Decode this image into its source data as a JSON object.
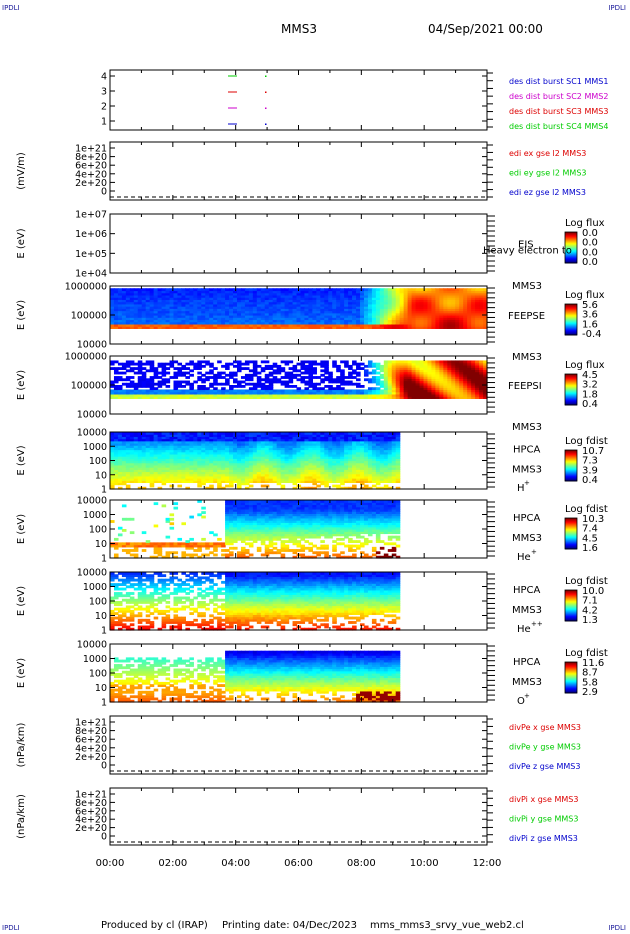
{
  "header": {
    "corner_label": "IPDLI",
    "spacecraft": "MMS3",
    "datetime": "04/Sep/2021 00:00"
  },
  "footer": {
    "produced_by": "Produced by cl (IRAP)",
    "printing_date": "Printing date: 04/Dec/2023",
    "filename": "mms_mms3_srvy_vue_web2.cl"
  },
  "colors": {
    "red": "#dd0000",
    "green": "#00cc00",
    "blue": "#0000cc",
    "magenta": "#cc00cc"
  },
  "chart_data": [
    {
      "type": "line",
      "name": "burst-intervals",
      "ylabel": "",
      "yticks": [
        "4",
        "3",
        "2",
        "1"
      ],
      "legend": [
        {
          "label": "des dist burst SC1 MMS1",
          "color": "#0000cc"
        },
        {
          "label": "des dist burst SC2 MMS2",
          "color": "#cc00cc"
        },
        {
          "label": "des dist burst SC3 MMS3",
          "color": "#dd0000"
        },
        {
          "label": "des dist burst SC4 MMS4",
          "color": "#00cc00"
        }
      ]
    },
    {
      "type": "line",
      "name": "edi-e-field",
      "ylabel": "(mV/m)",
      "yticks": [
        "1e+21",
        "8e+20",
        "6e+20",
        "4e+20",
        "2e+20",
        "0"
      ],
      "legend": [
        {
          "label": "edi ex gse l2 MMS3",
          "color": "#dd0000"
        },
        {
          "label": "edi ey gse l2 MMS3",
          "color": "#00cc00"
        },
        {
          "label": "edi ez gse l2 MMS3",
          "color": "#0000cc"
        }
      ]
    },
    {
      "type": "heatmap",
      "name": "eis",
      "ylabel": "E (eV)",
      "yticks": [
        "1e+07",
        "1e+06",
        "1e+05",
        "1e+04"
      ],
      "instrument": "EIS",
      "craft": "MMS3",
      "overlay_text": "Heavy electron to",
      "colorbar": {
        "title": "Log flux",
        "ticks": [
          "0.0",
          "0.0",
          "0.0",
          "0.0"
        ]
      }
    },
    {
      "type": "heatmap",
      "name": "feepse",
      "ylabel": "E (eV)",
      "yticks": [
        "1000000",
        "100000",
        "10000"
      ],
      "instrument": "FEEPSE",
      "craft": "MMS3",
      "colorbar": {
        "title": "Log flux",
        "ticks": [
          "5.6",
          "3.6",
          "1.6",
          "-0.4"
        ]
      }
    },
    {
      "type": "heatmap",
      "name": "feepsi",
      "ylabel": "E (eV)",
      "yticks": [
        "1000000",
        "100000",
        "10000"
      ],
      "instrument": "FEEPSI",
      "craft": "MMS3",
      "colorbar": {
        "title": "Log flux",
        "ticks": [
          "4.5",
          "3.2",
          "1.8",
          "0.4"
        ]
      }
    },
    {
      "type": "heatmap",
      "name": "hpca-h",
      "ylabel": "E (eV)",
      "yticks": [
        "10000",
        "1000",
        "100",
        "10",
        "1"
      ],
      "instrument": "HPCA",
      "craft": "MMS3",
      "species": "H",
      "charge": "+",
      "colorbar": {
        "title": "Log fdist",
        "ticks": [
          "10.7",
          "7.3",
          "3.9",
          "0.4"
        ]
      }
    },
    {
      "type": "heatmap",
      "name": "hpca-he",
      "ylabel": "E (eV)",
      "yticks": [
        "10000",
        "1000",
        "100",
        "10",
        "1"
      ],
      "instrument": "HPCA",
      "craft": "MMS3",
      "species": "He",
      "charge": "+",
      "colorbar": {
        "title": "Log fdist",
        "ticks": [
          "10.3",
          "7.4",
          "4.5",
          "1.6"
        ]
      }
    },
    {
      "type": "heatmap",
      "name": "hpca-hepp",
      "ylabel": "E (eV)",
      "yticks": [
        "10000",
        "1000",
        "100",
        "10",
        "1"
      ],
      "instrument": "HPCA",
      "craft": "MMS3",
      "species": "He",
      "charge": "++",
      "colorbar": {
        "title": "Log fdist",
        "ticks": [
          "10.0",
          "7.1",
          "4.2",
          "1.3"
        ]
      }
    },
    {
      "type": "heatmap",
      "name": "hpca-o",
      "ylabel": "E (eV)",
      "yticks": [
        "10000",
        "1000",
        "100",
        "10",
        "1"
      ],
      "instrument": "HPCA",
      "craft": "MMS3",
      "species": "O",
      "charge": "+",
      "colorbar": {
        "title": "Log fdist",
        "ticks": [
          "11.6",
          "8.7",
          "5.8",
          "2.9"
        ]
      }
    },
    {
      "type": "line",
      "name": "divpe",
      "ylabel": "(nPa/km)",
      "yticks": [
        "1e+21",
        "8e+20",
        "6e+20",
        "4e+20",
        "2e+20",
        "0"
      ],
      "legend": [
        {
          "label": "divPe x gse MMS3",
          "color": "#dd0000"
        },
        {
          "label": "divPe y gse MMS3",
          "color": "#00cc00"
        },
        {
          "label": "divPe z gse MMS3",
          "color": "#0000cc"
        }
      ]
    },
    {
      "type": "line",
      "name": "divpi",
      "ylabel": "(nPa/km)",
      "yticks": [
        "1e+21",
        "8e+20",
        "6e+20",
        "4e+20",
        "2e+20",
        "0"
      ],
      "legend": [
        {
          "label": "divPi x gse MMS3",
          "color": "#dd0000"
        },
        {
          "label": "divPi y gse MMS3",
          "color": "#00cc00"
        },
        {
          "label": "divPi z gse MMS3",
          "color": "#0000cc"
        }
      ]
    }
  ],
  "time_axis": {
    "labels": [
      "00:00",
      "02:00",
      "04:00",
      "06:00",
      "08:00",
      "10:00",
      "12:00"
    ],
    "range_hours": [
      0,
      12
    ]
  }
}
